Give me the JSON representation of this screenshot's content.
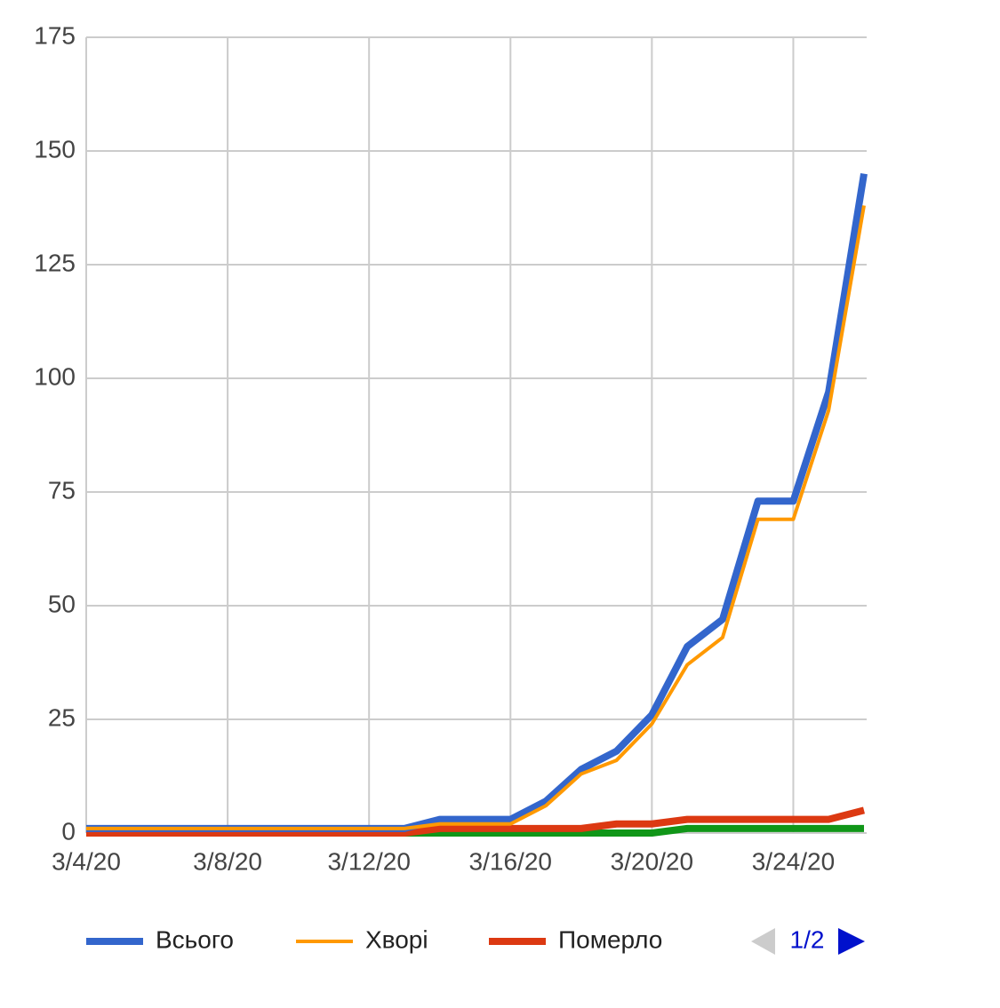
{
  "chart_data": {
    "type": "line",
    "x": [
      "3/4/20",
      "3/5/20",
      "3/6/20",
      "3/7/20",
      "3/8/20",
      "3/9/20",
      "3/10/20",
      "3/11/20",
      "3/12/20",
      "3/13/20",
      "3/14/20",
      "3/15/20",
      "3/16/20",
      "3/17/20",
      "3/18/20",
      "3/19/20",
      "3/20/20",
      "3/21/20",
      "3/22/20",
      "3/23/20",
      "3/24/20",
      "3/25/20",
      "3/26/20"
    ],
    "series": [
      {
        "name": "Всього",
        "color": "#3366cc",
        "values": [
          1,
          1,
          1,
          1,
          1,
          1,
          1,
          1,
          1,
          1,
          3,
          3,
          3,
          7,
          14,
          18,
          26,
          41,
          47,
          73,
          73,
          97,
          145
        ]
      },
      {
        "name": "Хворі",
        "color": "#ff9900",
        "values": [
          1,
          1,
          1,
          1,
          1,
          1,
          1,
          1,
          1,
          1,
          2,
          2,
          2,
          6,
          13,
          16,
          24,
          37,
          43,
          69,
          69,
          93,
          138
        ]
      },
      {
        "name": "Померло",
        "color": "#dc3912",
        "values": [
          0,
          0,
          0,
          0,
          0,
          0,
          0,
          0,
          0,
          0,
          1,
          1,
          1,
          1,
          1,
          2,
          2,
          3,
          3,
          3,
          3,
          3,
          5
        ]
      },
      {
        "color": "#109618",
        "values": [
          0,
          0,
          0,
          0,
          0,
          0,
          0,
          0,
          0,
          0,
          0,
          0,
          0,
          0,
          0,
          0,
          0,
          1,
          1,
          1,
          1,
          1,
          1
        ]
      }
    ],
    "xlim": [
      "3/4/20",
      "3/26/20"
    ],
    "xticks": [
      "3/4/20",
      "3/8/20",
      "3/12/20",
      "3/16/20",
      "3/20/20",
      "3/24/20"
    ],
    "ylim": [
      0,
      175
    ],
    "yticks": [
      0,
      25,
      50,
      75,
      100,
      125,
      150,
      175
    ],
    "grid": true,
    "legend": {
      "position": "bottom",
      "page": "1/2"
    }
  }
}
